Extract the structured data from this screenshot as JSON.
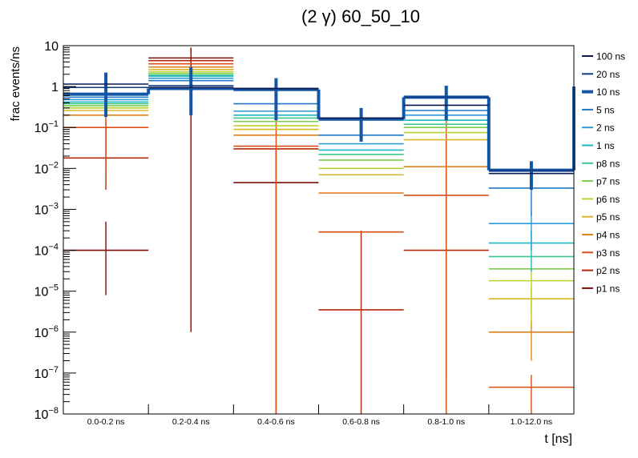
{
  "chart_data": {
    "type": "step-histogram",
    "title": "(2 γ) 60_50_10",
    "xlabel": "t [ns]",
    "ylabel": "frac events/ns",
    "yscale": "log",
    "ylim": [
      1e-08,
      10
    ],
    "categories": [
      "0.0-0.2 ns",
      "0.2-0.4 ns",
      "0.4-0.6 ns",
      "0.6-0.8 ns",
      "0.8-1.0 ns",
      "1.0-12.0 ns"
    ],
    "y_ticks": [
      {
        "value": 1e-08,
        "base": "10",
        "exp": "−8"
      },
      {
        "value": 1e-07,
        "base": "10",
        "exp": "−7"
      },
      {
        "value": 1e-06,
        "base": "10",
        "exp": "−6"
      },
      {
        "value": 1e-05,
        "base": "10",
        "exp": "−5"
      },
      {
        "value": 0.0001,
        "base": "10",
        "exp": "−4"
      },
      {
        "value": 0.001,
        "base": "10",
        "exp": "−3"
      },
      {
        "value": 0.01,
        "base": "10",
        "exp": "−2"
      },
      {
        "value": 0.1,
        "base": "10",
        "exp": "−1"
      },
      {
        "value": 1,
        "base": "1",
        "exp": ""
      },
      {
        "value": 10,
        "base": "10",
        "exp": ""
      }
    ],
    "series": [
      {
        "name": "100 ns",
        "color": "#0b1a4e",
        "thick": false,
        "values": [
          1.15,
          0.95,
          0.9,
          0.17,
          0.35,
          0.0075
        ],
        "err_bins": []
      },
      {
        "name": "20 ns",
        "color": "#113a80",
        "thick": false,
        "values": [
          0.95,
          1.05,
          0.88,
          0.17,
          0.55,
          0.009
        ],
        "err_bins": []
      },
      {
        "name": "10 ns",
        "color": "#1356a6",
        "thick": true,
        "values": [
          0.65,
          0.9,
          0.85,
          0.16,
          0.55,
          0.009
        ],
        "errors": [
          [
            0.18,
            2.2
          ],
          [
            0.2,
            3.0
          ],
          [
            0.15,
            1.6
          ],
          [
            0.045,
            0.3
          ],
          [
            0.15,
            1.05
          ],
          [
            0.003,
            0.015
          ]
        ]
      },
      {
        "name": "5 ns",
        "color": "#1f78c8",
        "thick": false,
        "values": [
          0.55,
          1.4,
          0.38,
          0.065,
          0.26,
          0.0033
        ],
        "errors": [
          null,
          null,
          null,
          null,
          null,
          [
            0.0007,
            0.0065
          ]
        ]
      },
      {
        "name": "2 ns",
        "color": "#2a9bd8",
        "thick": false,
        "values": [
          0.48,
          1.6,
          0.25,
          0.04,
          0.2,
          0.00045
        ],
        "errors": [
          null,
          null,
          null,
          null,
          null,
          [
            0.0001,
            0.0009
          ]
        ]
      },
      {
        "name": "1 ns",
        "color": "#1fb8c0",
        "thick": false,
        "values": [
          0.42,
          1.8,
          0.2,
          0.028,
          0.15,
          0.00015
        ],
        "errors": [
          null,
          null,
          null,
          null,
          null,
          [
            3e-05,
            0.0003
          ]
        ]
      },
      {
        "name": "p8 ns",
        "color": "#3cc78c",
        "thick": false,
        "values": [
          0.38,
          1.9,
          0.17,
          0.022,
          0.12,
          7e-05
        ],
        "err_bins": []
      },
      {
        "name": "p7 ns",
        "color": "#7ccd4a",
        "thick": false,
        "values": [
          0.34,
          2.1,
          0.14,
          0.016,
          0.1,
          3.5e-05
        ],
        "err_bins": []
      },
      {
        "name": "p6 ns",
        "color": "#b9d22c",
        "thick": false,
        "values": [
          0.3,
          2.3,
          0.11,
          0.01,
          0.075,
          1.8e-05
        ],
        "errors": [
          null,
          null,
          null,
          null,
          null,
          [
            3e-06,
            3.5e-05
          ]
        ]
      },
      {
        "name": "p5 ns",
        "color": "#d8b52a",
        "thick": false,
        "values": [
          0.26,
          2.6,
          0.09,
          0.007,
          0.05,
          6.5e-06
        ],
        "errors": [
          null,
          null,
          null,
          null,
          null,
          [
            1.5e-06,
            1.3e-05
          ]
        ]
      },
      {
        "name": "p4 ns",
        "color": "#e0801e",
        "thick": false,
        "values": [
          0.2,
          3.0,
          0.065,
          0.0025,
          0.011,
          1e-06
        ],
        "errors": [
          null,
          null,
          null,
          null,
          null,
          [
            2e-07,
            2e-06
          ]
        ]
      },
      {
        "name": "p3 ns",
        "color": "#d94f14",
        "thick": false,
        "values": [
          0.1,
          3.6,
          0.035,
          0.00028,
          0.0022,
          4.5e-08
        ],
        "errors": [
          [
            0.01,
            0.7
          ],
          null,
          [
            1e-08,
            0.2
          ],
          null,
          [
            1e-08,
            0.2
          ],
          [
            1e-08,
            9e-08
          ]
        ]
      },
      {
        "name": "p2 ns",
        "color": "#b42a0a",
        "thick": false,
        "values": [
          0.018,
          4.3,
          0.03,
          3.5e-06,
          0.0001,
          null
        ],
        "errors": [
          [
            0.003,
            0.15
          ],
          null,
          null,
          [
            1e-08,
            0.0003
          ],
          [
            7e-08,
            0.015
          ],
          null
        ]
      },
      {
        "name": "p1 ns",
        "color": "#7a0f05",
        "thick": false,
        "values": [
          0.0001,
          5.0,
          0.0045,
          null,
          null,
          null
        ],
        "errors": [
          [
            8e-06,
            0.0005
          ],
          [
            1e-06,
            9.0
          ],
          [
            1e-08,
            0.03
          ],
          null,
          null,
          null
        ]
      }
    ]
  }
}
